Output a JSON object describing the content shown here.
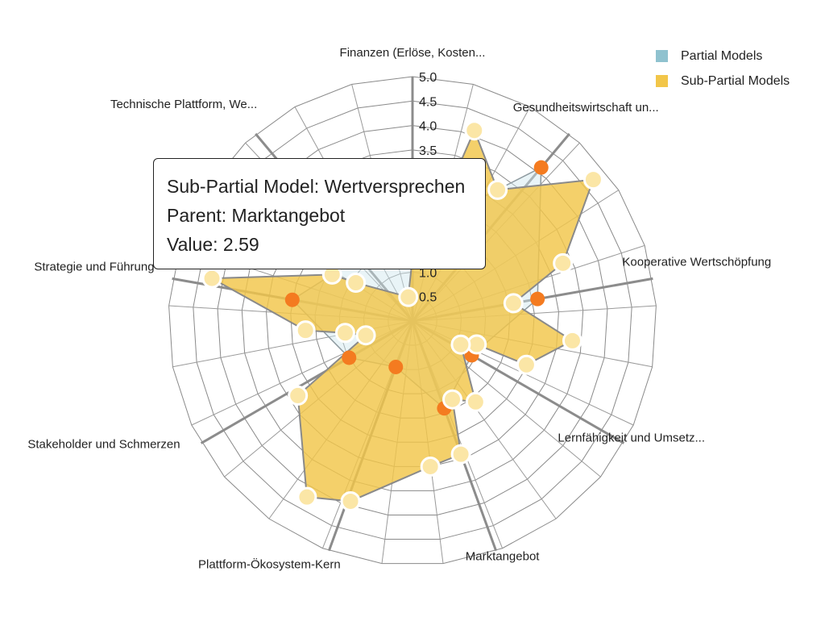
{
  "chart_data": {
    "type": "radar",
    "axes": [
      "Finanzen (Erlöse, Kosten...",
      "Gesundheitswirtschaft un...",
      "Kooperative Wertschöpfung",
      "Lernfähigkeit und Umsetz...",
      "Marktangebot",
      "Plattform-Ökosystem-Kern",
      "Stakeholder und Schmerzen",
      "Strategie und Führung",
      "Technische Plattform, We..."
    ],
    "rlim": [
      0,
      5
    ],
    "ticks": [
      "0.5",
      "1.0",
      "1.5",
      "2.0",
      "2.5",
      "3.0",
      "3.5",
      "4.0",
      "4.5",
      "5.0"
    ],
    "grid": true,
    "legend_position": "top-right",
    "series": [
      {
        "name": "Partial Models",
        "color": "#7fb9c8",
        "marker_color": "#f47b20",
        "points": [
          {
            "axis": 0,
            "value": 1.8
          },
          {
            "axis": 1,
            "value": 4.1
          },
          {
            "axis": 2,
            "value": 2.6
          },
          {
            "axis": 3,
            "value": 1.4
          },
          {
            "axis": 4,
            "value": 1.9
          },
          {
            "axis": 5,
            "value": 1.0
          },
          {
            "axis": 6,
            "value": 1.5
          },
          {
            "axis": 7,
            "value": 2.5
          },
          {
            "axis": 8,
            "value": 1.7
          }
        ]
      },
      {
        "name": "Sub-Partial Models",
        "color": "#f2c649",
        "marker_color": "#fbe6a6",
        "points": [
          {
            "angle": 0,
            "value": 1.3
          },
          {
            "angle": 12,
            "value": 2.0
          },
          {
            "angle": 18,
            "value": 4.1
          },
          {
            "angle": 33,
            "value": 3.2
          },
          {
            "angle": 52,
            "value": 4.7
          },
          {
            "angle": 69,
            "value": 3.3
          },
          {
            "angle": 80,
            "value": 2.1
          },
          {
            "angle": 97,
            "value": 3.3
          },
          {
            "angle": 111,
            "value": 2.5
          },
          {
            "angle": 110,
            "value": 1.4
          },
          {
            "angle": 116,
            "value": 1.1
          },
          {
            "angle": 142,
            "value": 2.1
          },
          {
            "angle": 153,
            "value": 1.8
          },
          {
            "angle": 160,
            "value": 2.9
          },
          {
            "angle": 173,
            "value": 3.0
          },
          {
            "angle": 199,
            "value": 3.9
          },
          {
            "angle": 211,
            "value": 4.2
          },
          {
            "angle": 237,
            "value": 2.8
          },
          {
            "angle": 253,
            "value": 1.0
          },
          {
            "angle": 260,
            "value": 1.4
          },
          {
            "angle": 265,
            "value": 2.2
          },
          {
            "angle": 282,
            "value": 4.2
          },
          {
            "angle": 300,
            "value": 1.9
          },
          {
            "angle": 304,
            "value": 1.4
          },
          {
            "angle": 350,
            "value": 0.5
          }
        ]
      }
    ]
  },
  "legend": {
    "items": [
      {
        "label": "Partial Models",
        "color": "#7fb9c8"
      },
      {
        "label": "Sub-Partial Models",
        "color": "#f2c649"
      }
    ]
  },
  "tooltip": {
    "line1": "Sub-Partial Model: Wertversprechen",
    "line2": "Parent: Marktangebot",
    "line3": "Value: 2.59"
  }
}
